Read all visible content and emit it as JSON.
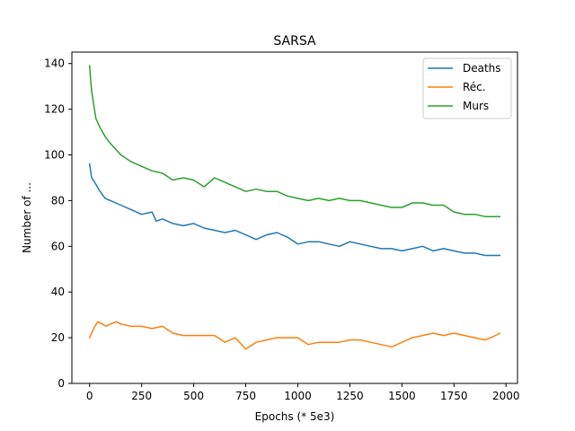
{
  "chart_data": {
    "type": "line",
    "title": "SARSA",
    "xlabel": "Epochs (* 5e3)",
    "ylabel": "Number of ...",
    "xlim": [
      -85,
      2055
    ],
    "ylim": [
      0,
      145
    ],
    "x_ticks": [
      0,
      250,
      500,
      750,
      1000,
      1250,
      1500,
      1750,
      2000
    ],
    "y_ticks": [
      0,
      20,
      40,
      60,
      80,
      100,
      120,
      140
    ],
    "grid": false,
    "legend_position": "top-right",
    "series": [
      {
        "name": "Deaths",
        "color": "#1f77b4",
        "points": [
          [
            0,
            96
          ],
          [
            10,
            90
          ],
          [
            25,
            88
          ],
          [
            50,
            84
          ],
          [
            75,
            81
          ],
          [
            100,
            80
          ],
          [
            150,
            78
          ],
          [
            200,
            76
          ],
          [
            250,
            74
          ],
          [
            300,
            75
          ],
          [
            320,
            71
          ],
          [
            350,
            72
          ],
          [
            400,
            70
          ],
          [
            450,
            69
          ],
          [
            500,
            70
          ],
          [
            550,
            68
          ],
          [
            600,
            67
          ],
          [
            650,
            66
          ],
          [
            700,
            67
          ],
          [
            750,
            65
          ],
          [
            800,
            63
          ],
          [
            850,
            65
          ],
          [
            900,
            66
          ],
          [
            950,
            64
          ],
          [
            1000,
            61
          ],
          [
            1050,
            62
          ],
          [
            1100,
            62
          ],
          [
            1150,
            61
          ],
          [
            1200,
            60
          ],
          [
            1250,
            62
          ],
          [
            1300,
            61
          ],
          [
            1350,
            60
          ],
          [
            1400,
            59
          ],
          [
            1450,
            59
          ],
          [
            1500,
            58
          ],
          [
            1550,
            59
          ],
          [
            1600,
            60
          ],
          [
            1650,
            58
          ],
          [
            1700,
            59
          ],
          [
            1750,
            58
          ],
          [
            1800,
            57
          ],
          [
            1850,
            57
          ],
          [
            1900,
            56
          ],
          [
            1950,
            56
          ],
          [
            1970,
            56
          ]
        ]
      },
      {
        "name": "Réc.",
        "color": "#ff7f0e",
        "points": [
          [
            0,
            20
          ],
          [
            10,
            22
          ],
          [
            25,
            25
          ],
          [
            40,
            27
          ],
          [
            60,
            26
          ],
          [
            80,
            25
          ],
          [
            100,
            26
          ],
          [
            130,
            27
          ],
          [
            150,
            26
          ],
          [
            200,
            25
          ],
          [
            250,
            25
          ],
          [
            300,
            24
          ],
          [
            350,
            25
          ],
          [
            400,
            22
          ],
          [
            450,
            21
          ],
          [
            500,
            21
          ],
          [
            550,
            21
          ],
          [
            600,
            21
          ],
          [
            650,
            18
          ],
          [
            700,
            20
          ],
          [
            750,
            15
          ],
          [
            800,
            18
          ],
          [
            850,
            19
          ],
          [
            900,
            20
          ],
          [
            950,
            20
          ],
          [
            1000,
            20
          ],
          [
            1050,
            17
          ],
          [
            1100,
            18
          ],
          [
            1150,
            18
          ],
          [
            1200,
            18
          ],
          [
            1250,
            19
          ],
          [
            1300,
            19
          ],
          [
            1350,
            18
          ],
          [
            1400,
            17
          ],
          [
            1450,
            16
          ],
          [
            1500,
            18
          ],
          [
            1550,
            20
          ],
          [
            1600,
            21
          ],
          [
            1650,
            22
          ],
          [
            1700,
            21
          ],
          [
            1750,
            22
          ],
          [
            1800,
            21
          ],
          [
            1850,
            20
          ],
          [
            1900,
            19
          ],
          [
            1950,
            21
          ],
          [
            1970,
            22
          ]
        ]
      },
      {
        "name": "Murs",
        "color": "#2ca02c",
        "points": [
          [
            0,
            139
          ],
          [
            5,
            133
          ],
          [
            10,
            128
          ],
          [
            20,
            122
          ],
          [
            30,
            116
          ],
          [
            50,
            112
          ],
          [
            75,
            108
          ],
          [
            100,
            105
          ],
          [
            150,
            100
          ],
          [
            200,
            97
          ],
          [
            250,
            95
          ],
          [
            300,
            93
          ],
          [
            350,
            92
          ],
          [
            400,
            89
          ],
          [
            450,
            90
          ],
          [
            500,
            89
          ],
          [
            550,
            86
          ],
          [
            600,
            90
          ],
          [
            650,
            88
          ],
          [
            700,
            86
          ],
          [
            750,
            84
          ],
          [
            800,
            85
          ],
          [
            850,
            84
          ],
          [
            900,
            84
          ],
          [
            950,
            82
          ],
          [
            1000,
            81
          ],
          [
            1050,
            80
          ],
          [
            1100,
            81
          ],
          [
            1150,
            80
          ],
          [
            1200,
            81
          ],
          [
            1250,
            80
          ],
          [
            1300,
            80
          ],
          [
            1350,
            79
          ],
          [
            1400,
            78
          ],
          [
            1450,
            77
          ],
          [
            1500,
            77
          ],
          [
            1550,
            79
          ],
          [
            1600,
            79
          ],
          [
            1650,
            78
          ],
          [
            1700,
            78
          ],
          [
            1750,
            75
          ],
          [
            1800,
            74
          ],
          [
            1850,
            74
          ],
          [
            1900,
            73
          ],
          [
            1950,
            73
          ],
          [
            1970,
            73
          ]
        ]
      }
    ]
  }
}
